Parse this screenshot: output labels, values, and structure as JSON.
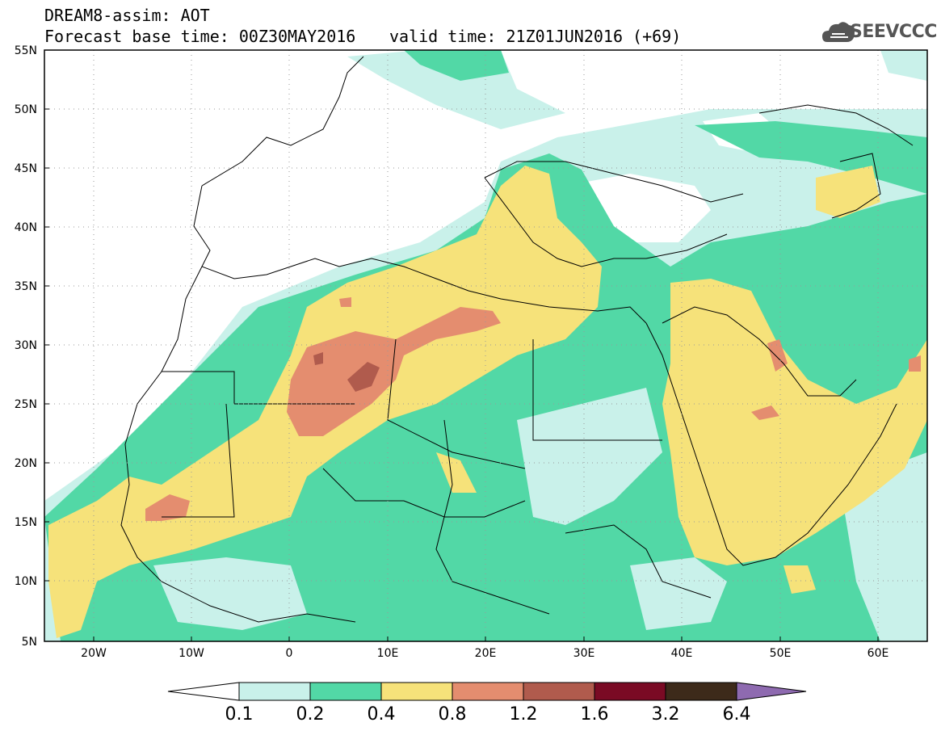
{
  "header": {
    "line1": "DREAM8-assim: AOT",
    "line2": "Forecast base time: 00Z30MAY2016",
    "line3": "valid time: 21Z01JUN2016 (+69)"
  },
  "logo": {
    "text": "SEEVCCC",
    "icon": "cloud-icon"
  },
  "map": {
    "lat_labels": [
      "55N",
      "50N",
      "45N",
      "40N",
      "35N",
      "30N",
      "25N",
      "20N",
      "15N",
      "10N",
      "5N"
    ],
    "lon_labels": [
      "20W",
      "10W",
      "0",
      "10E",
      "20E",
      "30E",
      "40E",
      "50E",
      "60E"
    ],
    "lat_range": [
      5,
      55
    ],
    "lon_range": [
      -25,
      65
    ],
    "grid": "dotted"
  },
  "colorbar": {
    "labels": [
      "0.1",
      "0.2",
      "0.4",
      "0.8",
      "1.2",
      "1.6",
      "3.2",
      "6.4"
    ],
    "colors": [
      "#ffffff",
      "#bfefe6",
      "#4fd9a6",
      "#f7e27a",
      "#e8866a",
      "#b35a48",
      "#7a0a24",
      "#3d2a1a",
      "#8e6ab0"
    ]
  },
  "colors": {
    "c1": "#c9f1ea",
    "c2": "#52d8a6",
    "c3": "#f6e27a",
    "c4": "#e48d6f",
    "c5": "#b05b4d"
  }
}
